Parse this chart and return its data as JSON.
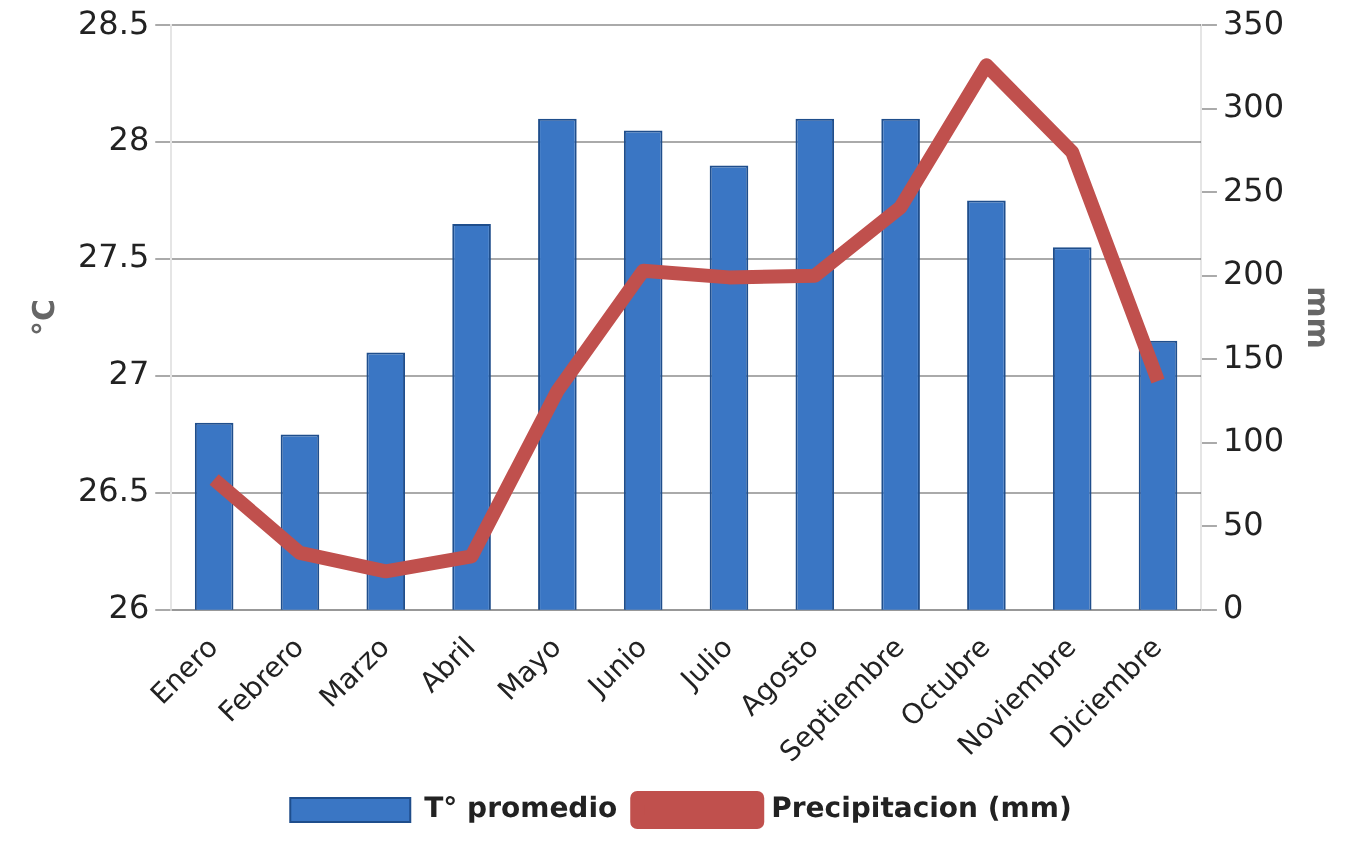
{
  "chart_data": {
    "type": "bar",
    "categories": [
      "Enero",
      "Febrero",
      "Marzo",
      "Abril",
      "Mayo",
      "Junio",
      "Julio",
      "Agosto",
      "Septiembre",
      "Octubre",
      "Noviembre",
      "Diciembre"
    ],
    "ylabel": "°C",
    "y2label": "mm",
    "legend": "bottom",
    "grid": "y",
    "ylim": [
      26,
      28.5
    ],
    "yticks": [
      26,
      26.5,
      27,
      27.5,
      28,
      28.5
    ],
    "y2lim": [
      0,
      350
    ],
    "y2ticks": [
      0,
      50,
      100,
      150,
      200,
      250,
      300,
      350
    ],
    "series": [
      {
        "name": "T° promedio",
        "color": "#3a76c4",
        "values": [
          26.8,
          26.75,
          27.1,
          27.65,
          28.1,
          28.05,
          27.9,
          28.1,
          28.1,
          27.75,
          27.55,
          27.15
        ]
      },
      {
        "name": "Precipitacion (mm)",
        "type": "line",
        "axis": "y2",
        "color": "#c0504d",
        "values": [
          78,
          34,
          23,
          32,
          131,
          203,
          199,
          200,
          241,
          326,
          274,
          137
        ]
      }
    ]
  }
}
